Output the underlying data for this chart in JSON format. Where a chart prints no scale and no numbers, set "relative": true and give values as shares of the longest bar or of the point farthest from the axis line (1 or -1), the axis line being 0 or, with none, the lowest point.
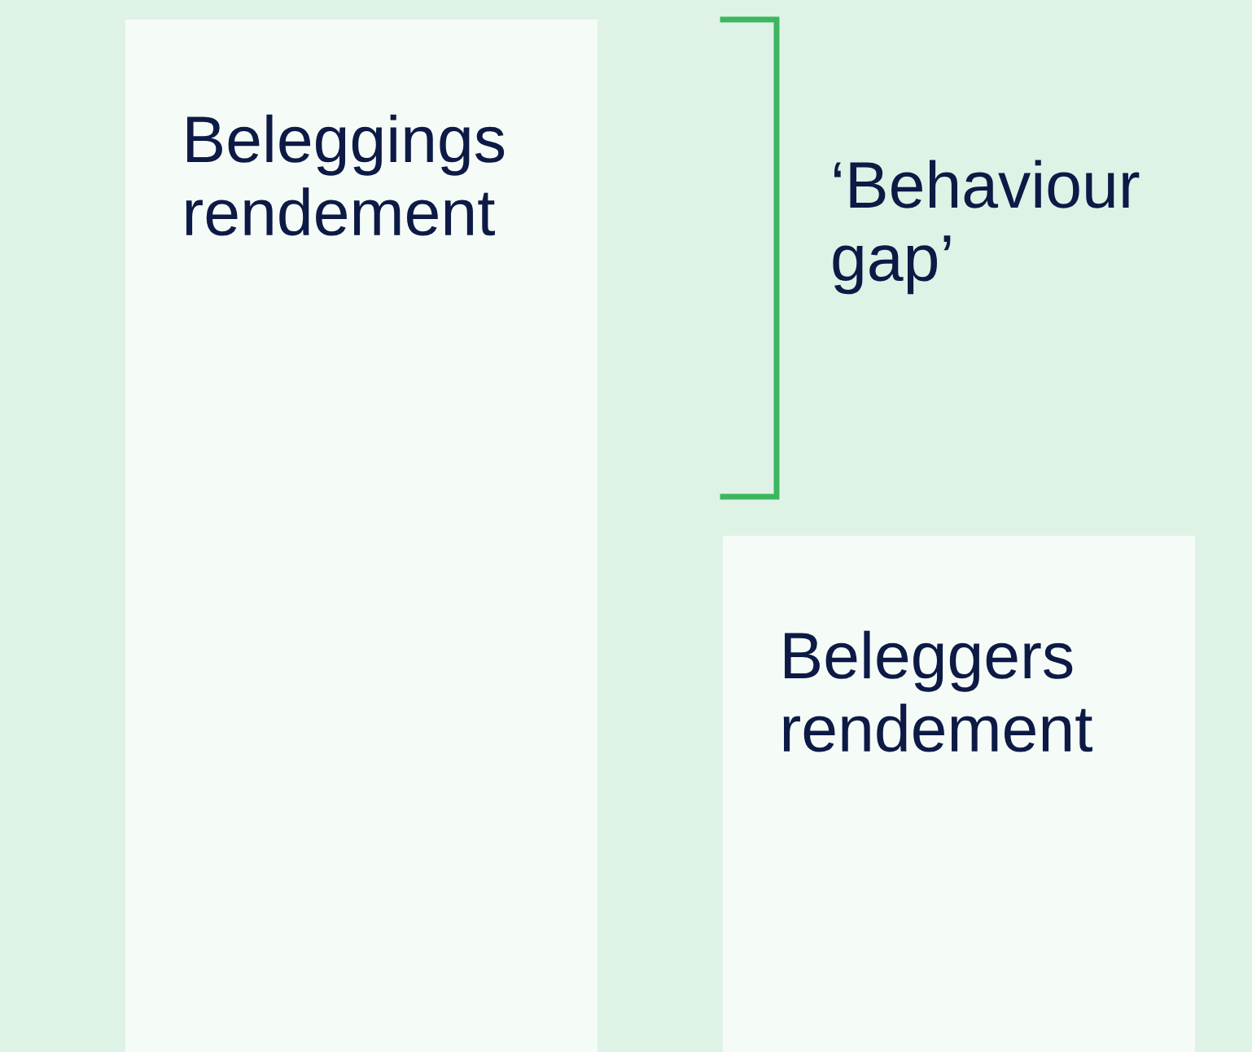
{
  "chart_data": {
    "type": "bar",
    "relative": true,
    "categories": [
      "Beleggings\nrendement",
      "Beleggers\nrendement"
    ],
    "values": [
      1,
      0.5
    ],
    "color": "#f5fcf8",
    "annotations": [
      "‘Behaviour\ngap’"
    ]
  }
}
